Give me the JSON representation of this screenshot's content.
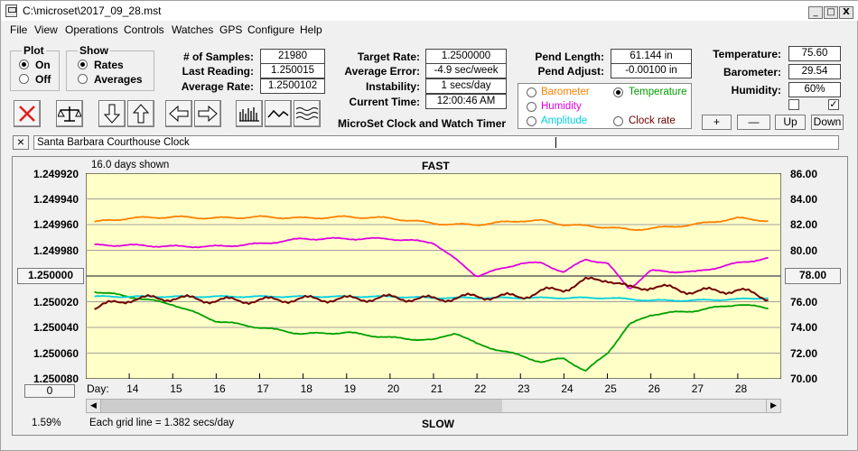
{
  "title": "C:\\microset\\2017_09_28.mst",
  "window_buttons": {
    "min": "_",
    "max": "□",
    "close": "X"
  },
  "menu": [
    "File",
    "View",
    "Operations",
    "Controls",
    "Watches",
    "GPS",
    "Configure",
    "Help"
  ],
  "plot_group": {
    "title": "Plot",
    "on": "On",
    "off": "Off",
    "selected": "On"
  },
  "show_group": {
    "title": "Show",
    "rates": "Rates",
    "averages": "Averages",
    "selected": "Rates"
  },
  "stats": {
    "samples_label": "# of Samples:",
    "samples": "21980",
    "last_label": "Last Reading:",
    "last": "1.250015",
    "avg_label": "Average Rate:",
    "avg": "1.2500102"
  },
  "targets": {
    "target_label": "Target Rate:",
    "target": "1.2500000",
    "err_label": "Average Error:",
    "err": "-4.9 sec/week",
    "instab_label": "Instability:",
    "instab": "1 secs/day",
    "time_label": "Current Time:",
    "time": "12:00:46 AM"
  },
  "pend": {
    "length_label": "Pend Length:",
    "length": "61.144 in",
    "adjust_label": "Pend Adjust:",
    "adjust": "-0.00100 in"
  },
  "env": {
    "temp_label": "Temperature:",
    "temp": "75.60",
    "baro_label": "Barometer:",
    "baro": "29.54",
    "hum_label": "Humidity:",
    "hum": "60%"
  },
  "series_select": {
    "barometer": "Barometer",
    "temperature": "Temperature",
    "humidity": "Humidity",
    "amplitude": "Amplitude",
    "clock_rate": "Clock rate",
    "selected": "Temperature"
  },
  "colors": {
    "barometer": "#ff8000",
    "temperature": "#00a000",
    "humidity": "#e000e0",
    "amplitude": "#00d0e0",
    "clock_rate": "#700000",
    "plot_bg": "#ffffc8"
  },
  "app_caption": "MicroSet Clock and Watch Timer",
  "env_buttons": {
    "plus": "+",
    "minus": "—",
    "up": "Up",
    "down": "Down"
  },
  "checkbox_2_mark": "✓",
  "clock_name": "Santa Barbara Courthouse Clock",
  "clear_button": "×",
  "graph": {
    "days_shown": "16.0 days shown",
    "fast": "FAST",
    "slow": "SLOW",
    "grid_note": "Each grid line = 1.382 secs/day",
    "left_value_btn": "1.250000",
    "right_value_btn": "78.00",
    "zero_btn": "0",
    "percent": "1.59%",
    "day_label": "Day:",
    "left_ticks": [
      "1.249920",
      "1.249940",
      "1.249960",
      "1.249980",
      "1.250020",
      "1.250040",
      "1.250060",
      "1.250080"
    ],
    "right_ticks": [
      "86.00",
      "84.00",
      "82.00",
      "80.00",
      "76.00",
      "74.00",
      "72.00",
      "70.00"
    ],
    "days": [
      "14",
      "15",
      "16",
      "17",
      "18",
      "19",
      "20",
      "21",
      "22",
      "23",
      "24",
      "25",
      "26",
      "27",
      "28"
    ]
  },
  "chart_data": {
    "type": "line",
    "title": "FAST",
    "xlabel": "Day:",
    "x": [
      13.2,
      14,
      15,
      16,
      17,
      18,
      19,
      20,
      21,
      21.5,
      22,
      23,
      23.5,
      24,
      24.5,
      25,
      25.5,
      26,
      27,
      28,
      28.7
    ],
    "y_left_range": [
      1.24992,
      1.25008
    ],
    "y_right_range": [
      70,
      86
    ],
    "series": [
      {
        "name": "Barometer",
        "axis": "right",
        "values": [
          82.2,
          82.5,
          82.6,
          82.5,
          82.6,
          82.5,
          82.6,
          82.5,
          82.1,
          82.0,
          82.0,
          82.3,
          82.3,
          82.0,
          81.9,
          81.8,
          81.6,
          81.7,
          82.0,
          82.5,
          82.3
        ]
      },
      {
        "name": "Humidity",
        "axis": "right",
        "values": [
          80.4,
          80.4,
          80.3,
          80.3,
          80.5,
          80.9,
          80.9,
          80.9,
          80.6,
          79.3,
          78.0,
          79.0,
          79.0,
          78.3,
          79.3,
          79.0,
          77.0,
          78.4,
          78.3,
          79.0,
          79.4
        ]
      },
      {
        "name": "Temperature",
        "axis": "right",
        "values": [
          76.8,
          76.4,
          75.8,
          74.5,
          74.0,
          73.5,
          73.6,
          73.2,
          73.0,
          73.6,
          72.7,
          71.8,
          71.3,
          71.6,
          70.6,
          72.0,
          74.2,
          75.0,
          75.3,
          75.8,
          75.5
        ]
      },
      {
        "name": "Clock rate",
        "axis": "left",
        "values": [
          1.250025,
          1.250018,
          1.250017,
          1.250019,
          1.250019,
          1.250018,
          1.250018,
          1.250017,
          1.250018,
          1.250017,
          1.250016,
          1.250016,
          1.250012,
          1.25001,
          1.250004,
          1.250002,
          1.25001,
          1.250008,
          1.250012,
          1.250011,
          1.250017
        ]
      },
      {
        "name": "Amplitude",
        "axis": "left",
        "values": [
          1.250016,
          1.250016,
          1.250016,
          1.250016,
          1.250016,
          1.250016,
          1.250016,
          1.250016,
          1.250017,
          1.250017,
          1.250017,
          1.250017,
          1.250017,
          1.250017,
          1.250017,
          1.250017,
          1.250018,
          1.250019,
          1.250019,
          1.250018,
          1.250017
        ]
      }
    ]
  }
}
